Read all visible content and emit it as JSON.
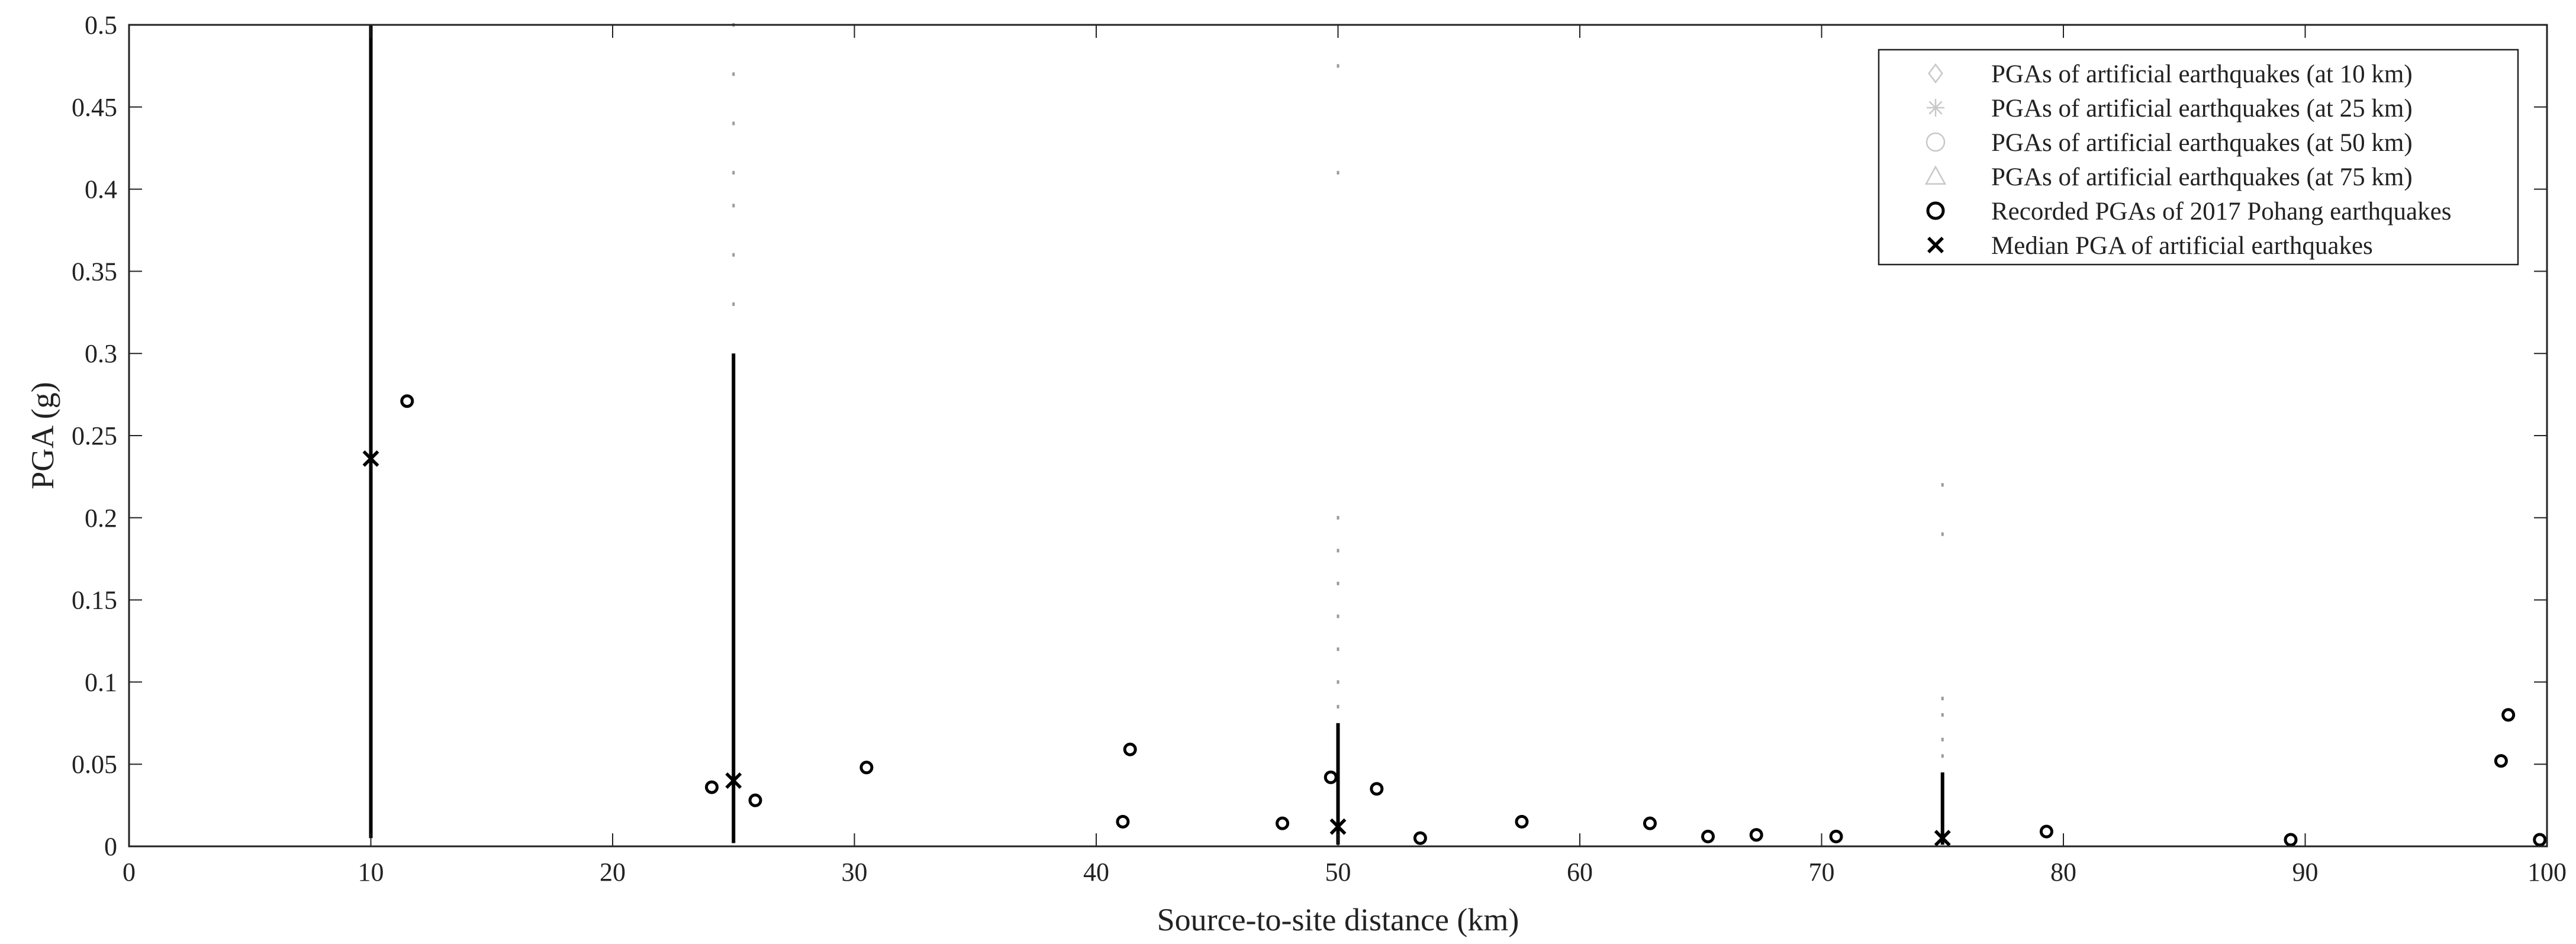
{
  "chart_data": {
    "type": "scatter",
    "xlabel": "Source-to-site distance (km)",
    "ylabel": "PGA (g)",
    "xlim": [
      0,
      100
    ],
    "ylim": [
      0,
      0.5
    ],
    "xticks": [
      0,
      10,
      20,
      30,
      40,
      50,
      60,
      70,
      80,
      90,
      100
    ],
    "yticks": [
      0,
      0.05,
      0.1,
      0.15,
      0.2,
      0.25,
      0.3,
      0.35,
      0.4,
      0.45,
      0.5
    ],
    "xtick_labels": [
      "0",
      "10",
      "20",
      "30",
      "40",
      "50",
      "60",
      "70",
      "80",
      "90",
      "100"
    ],
    "ytick_labels": [
      "0",
      "0.05",
      "0.1",
      "0.15",
      "0.2",
      "0.25",
      "0.3",
      "0.35",
      "0.4",
      "0.45",
      "0.5"
    ],
    "grid": false,
    "legend_position": "top-right",
    "series": [
      {
        "name": "PGAs of artificial earthquakes (at 10 km)",
        "marker": "diamond",
        "color": "#c8c8c8",
        "x": 10,
        "dense_range": [
          0.005,
          0.5
        ],
        "sparse_values": []
      },
      {
        "name": "PGAs of artificial earthquakes (at 25 km)",
        "marker": "asterisk",
        "color": "#c8c8c8",
        "x": 25,
        "dense_range": [
          0.002,
          0.3
        ],
        "sparse_values": [
          0.33,
          0.36,
          0.39,
          0.41,
          0.44,
          0.47,
          0.5
        ]
      },
      {
        "name": "PGAs of artificial earthquakes (at 50 km)",
        "marker": "circle",
        "color": "#c8c8c8",
        "x": 50,
        "dense_range": [
          0.001,
          0.075
        ],
        "sparse_values": [
          0.085,
          0.1,
          0.12,
          0.14,
          0.16,
          0.18,
          0.2,
          0.41,
          0.475
        ]
      },
      {
        "name": "PGAs of artificial earthquakes (at 75 km)",
        "marker": "triangle",
        "color": "#c8c8c8",
        "x": 75,
        "dense_range": [
          0.001,
          0.045
        ],
        "sparse_values": [
          0.055,
          0.065,
          0.08,
          0.09,
          0.19,
          0.22
        ]
      },
      {
        "name": "Recorded PGAs of 2017 Pohang earthquakes",
        "marker": "open-circle",
        "color": "#000000",
        "points": [
          {
            "x": 11.5,
            "y": 0.271
          },
          {
            "x": 24.1,
            "y": 0.036
          },
          {
            "x": 25.9,
            "y": 0.028
          },
          {
            "x": 30.5,
            "y": 0.048
          },
          {
            "x": 41.1,
            "y": 0.015
          },
          {
            "x": 41.4,
            "y": 0.059
          },
          {
            "x": 47.7,
            "y": 0.014
          },
          {
            "x": 49.7,
            "y": 0.042
          },
          {
            "x": 51.6,
            "y": 0.035
          },
          {
            "x": 53.4,
            "y": 0.005
          },
          {
            "x": 57.6,
            "y": 0.015
          },
          {
            "x": 62.9,
            "y": 0.014
          },
          {
            "x": 65.3,
            "y": 0.006
          },
          {
            "x": 67.3,
            "y": 0.007
          },
          {
            "x": 70.6,
            "y": 0.006
          },
          {
            "x": 79.3,
            "y": 0.009
          },
          {
            "x": 89.4,
            "y": 0.004
          },
          {
            "x": 98.1,
            "y": 0.052
          },
          {
            "x": 98.4,
            "y": 0.08
          },
          {
            "x": 99.7,
            "y": 0.004
          }
        ]
      },
      {
        "name": "Median PGA of artificial earthquakes",
        "marker": "x",
        "color": "#000000",
        "points": [
          {
            "x": 10,
            "y": 0.236
          },
          {
            "x": 25,
            "y": 0.04
          },
          {
            "x": 50,
            "y": 0.012
          },
          {
            "x": 75,
            "y": 0.005
          }
        ]
      }
    ]
  }
}
